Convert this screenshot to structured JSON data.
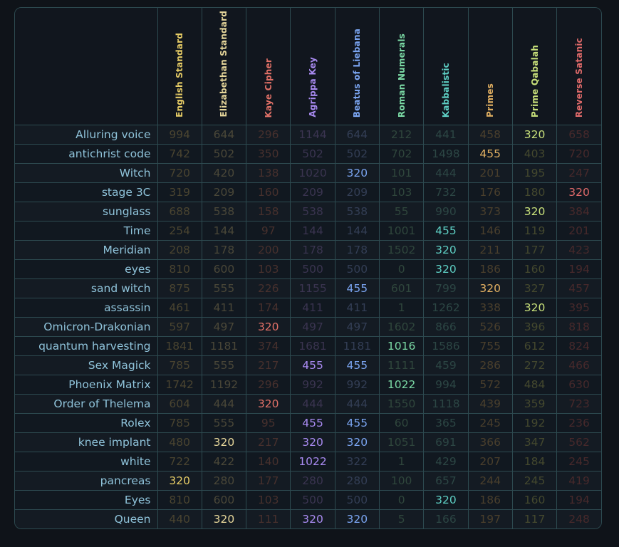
{
  "columns": [
    {
      "name": "English Standard",
      "color": "#e6cc66"
    },
    {
      "name": "Elizabethan Standard",
      "color": "#e6d69a"
    },
    {
      "name": "Kaye Cipher",
      "color": "#e07067"
    },
    {
      "name": "Agrippa Key",
      "color": "#a88af0"
    },
    {
      "name": "Beatus of Liebana",
      "color": "#7aa4f0"
    },
    {
      "name": "Roman Numerals",
      "color": "#7ad8a4"
    },
    {
      "name": "Kabbalistic",
      "color": "#5ecfc4"
    },
    {
      "name": "Primes",
      "color": "#e2b062"
    },
    {
      "name": "Prime Qabalah",
      "color": "#c8e07a"
    },
    {
      "name": "Reverse Satanic",
      "color": "#e06a6a"
    }
  ],
  "highlight_value": "320, 455, 1016, 1022 and similar matches are shown bright; all others dimmed",
  "rows": [
    {
      "label": "Alluring voice",
      "values": [
        "994",
        "644",
        "296",
        "1144",
        "644",
        "212",
        "441",
        "458",
        "320",
        "658"
      ],
      "hl": [
        8
      ]
    },
    {
      "label": "antichrist code",
      "values": [
        "742",
        "502",
        "350",
        "502",
        "502",
        "702",
        "1498",
        "455",
        "403",
        "720"
      ],
      "hl": [
        7
      ]
    },
    {
      "label": "Witch",
      "values": [
        "720",
        "420",
        "138",
        "1020",
        "320",
        "101",
        "444",
        "201",
        "195",
        "247"
      ],
      "hl": [
        4
      ]
    },
    {
      "label": "stage 3C",
      "values": [
        "319",
        "209",
        "160",
        "209",
        "209",
        "103",
        "732",
        "176",
        "180",
        "320"
      ],
      "hl": [
        9
      ]
    },
    {
      "label": "sunglass",
      "values": [
        "688",
        "538",
        "158",
        "538",
        "538",
        "55",
        "990",
        "373",
        "320",
        "384"
      ],
      "hl": [
        8
      ]
    },
    {
      "label": "Time",
      "values": [
        "254",
        "144",
        "97",
        "144",
        "144",
        "1001",
        "455",
        "146",
        "119",
        "201"
      ],
      "hl": [
        6
      ]
    },
    {
      "label": "Meridian",
      "values": [
        "208",
        "178",
        "200",
        "178",
        "178",
        "1502",
        "320",
        "211",
        "177",
        "423"
      ],
      "hl": [
        6
      ]
    },
    {
      "label": "eyes",
      "values": [
        "810",
        "600",
        "103",
        "500",
        "500",
        "0",
        "320",
        "186",
        "160",
        "194"
      ],
      "hl": [
        6
      ]
    },
    {
      "label": "sand witch",
      "values": [
        "875",
        "555",
        "226",
        "1155",
        "455",
        "601",
        "799",
        "320",
        "327",
        "457"
      ],
      "hl": [
        4,
        7
      ]
    },
    {
      "label": "assassin",
      "values": [
        "461",
        "411",
        "174",
        "411",
        "411",
        "1",
        "1262",
        "338",
        "320",
        "395"
      ],
      "hl": [
        8
      ]
    },
    {
      "label": "Omicron-Drakonian",
      "values": [
        "597",
        "497",
        "320",
        "497",
        "497",
        "1602",
        "866",
        "526",
        "396",
        "818"
      ],
      "hl": [
        2
      ]
    },
    {
      "label": "quantum harvesting",
      "values": [
        "1841",
        "1181",
        "374",
        "1681",
        "1181",
        "1016",
        "1586",
        "755",
        "612",
        "824"
      ],
      "hl": [
        5
      ]
    },
    {
      "label": "Sex Magick",
      "values": [
        "785",
        "555",
        "217",
        "455",
        "455",
        "1111",
        "459",
        "286",
        "272",
        "466"
      ],
      "hl": [
        3,
        4
      ]
    },
    {
      "label": "Phoenix Matrix",
      "values": [
        "1742",
        "1192",
        "296",
        "992",
        "992",
        "1022",
        "994",
        "572",
        "484",
        "630"
      ],
      "hl": [
        5
      ]
    },
    {
      "label": "Order of Thelema",
      "values": [
        "604",
        "444",
        "320",
        "444",
        "444",
        "1550",
        "1118",
        "439",
        "359",
        "723"
      ],
      "hl": [
        2
      ]
    },
    {
      "label": "Rolex",
      "values": [
        "785",
        "555",
        "95",
        "455",
        "455",
        "60",
        "365",
        "245",
        "192",
        "236"
      ],
      "hl": [
        3,
        4
      ]
    },
    {
      "label": "knee implant",
      "values": [
        "480",
        "320",
        "217",
        "320",
        "320",
        "1051",
        "691",
        "366",
        "347",
        "562"
      ],
      "hl": [
        1,
        3,
        4
      ]
    },
    {
      "label": "white",
      "values": [
        "722",
        "422",
        "140",
        "1022",
        "322",
        "1",
        "429",
        "207",
        "184",
        "245"
      ],
      "hl": [
        3
      ]
    },
    {
      "label": "pancreas",
      "values": [
        "320",
        "280",
        "177",
        "280",
        "280",
        "100",
        "657",
        "244",
        "245",
        "419"
      ],
      "hl": [
        0
      ]
    },
    {
      "label": "Eyes",
      "values": [
        "810",
        "600",
        "103",
        "500",
        "500",
        "0",
        "320",
        "186",
        "160",
        "194"
      ],
      "hl": [
        6
      ]
    },
    {
      "label": "Queen",
      "values": [
        "440",
        "320",
        "111",
        "320",
        "320",
        "5",
        "166",
        "197",
        "117",
        "248"
      ],
      "hl": [
        1,
        3,
        4
      ]
    }
  ]
}
